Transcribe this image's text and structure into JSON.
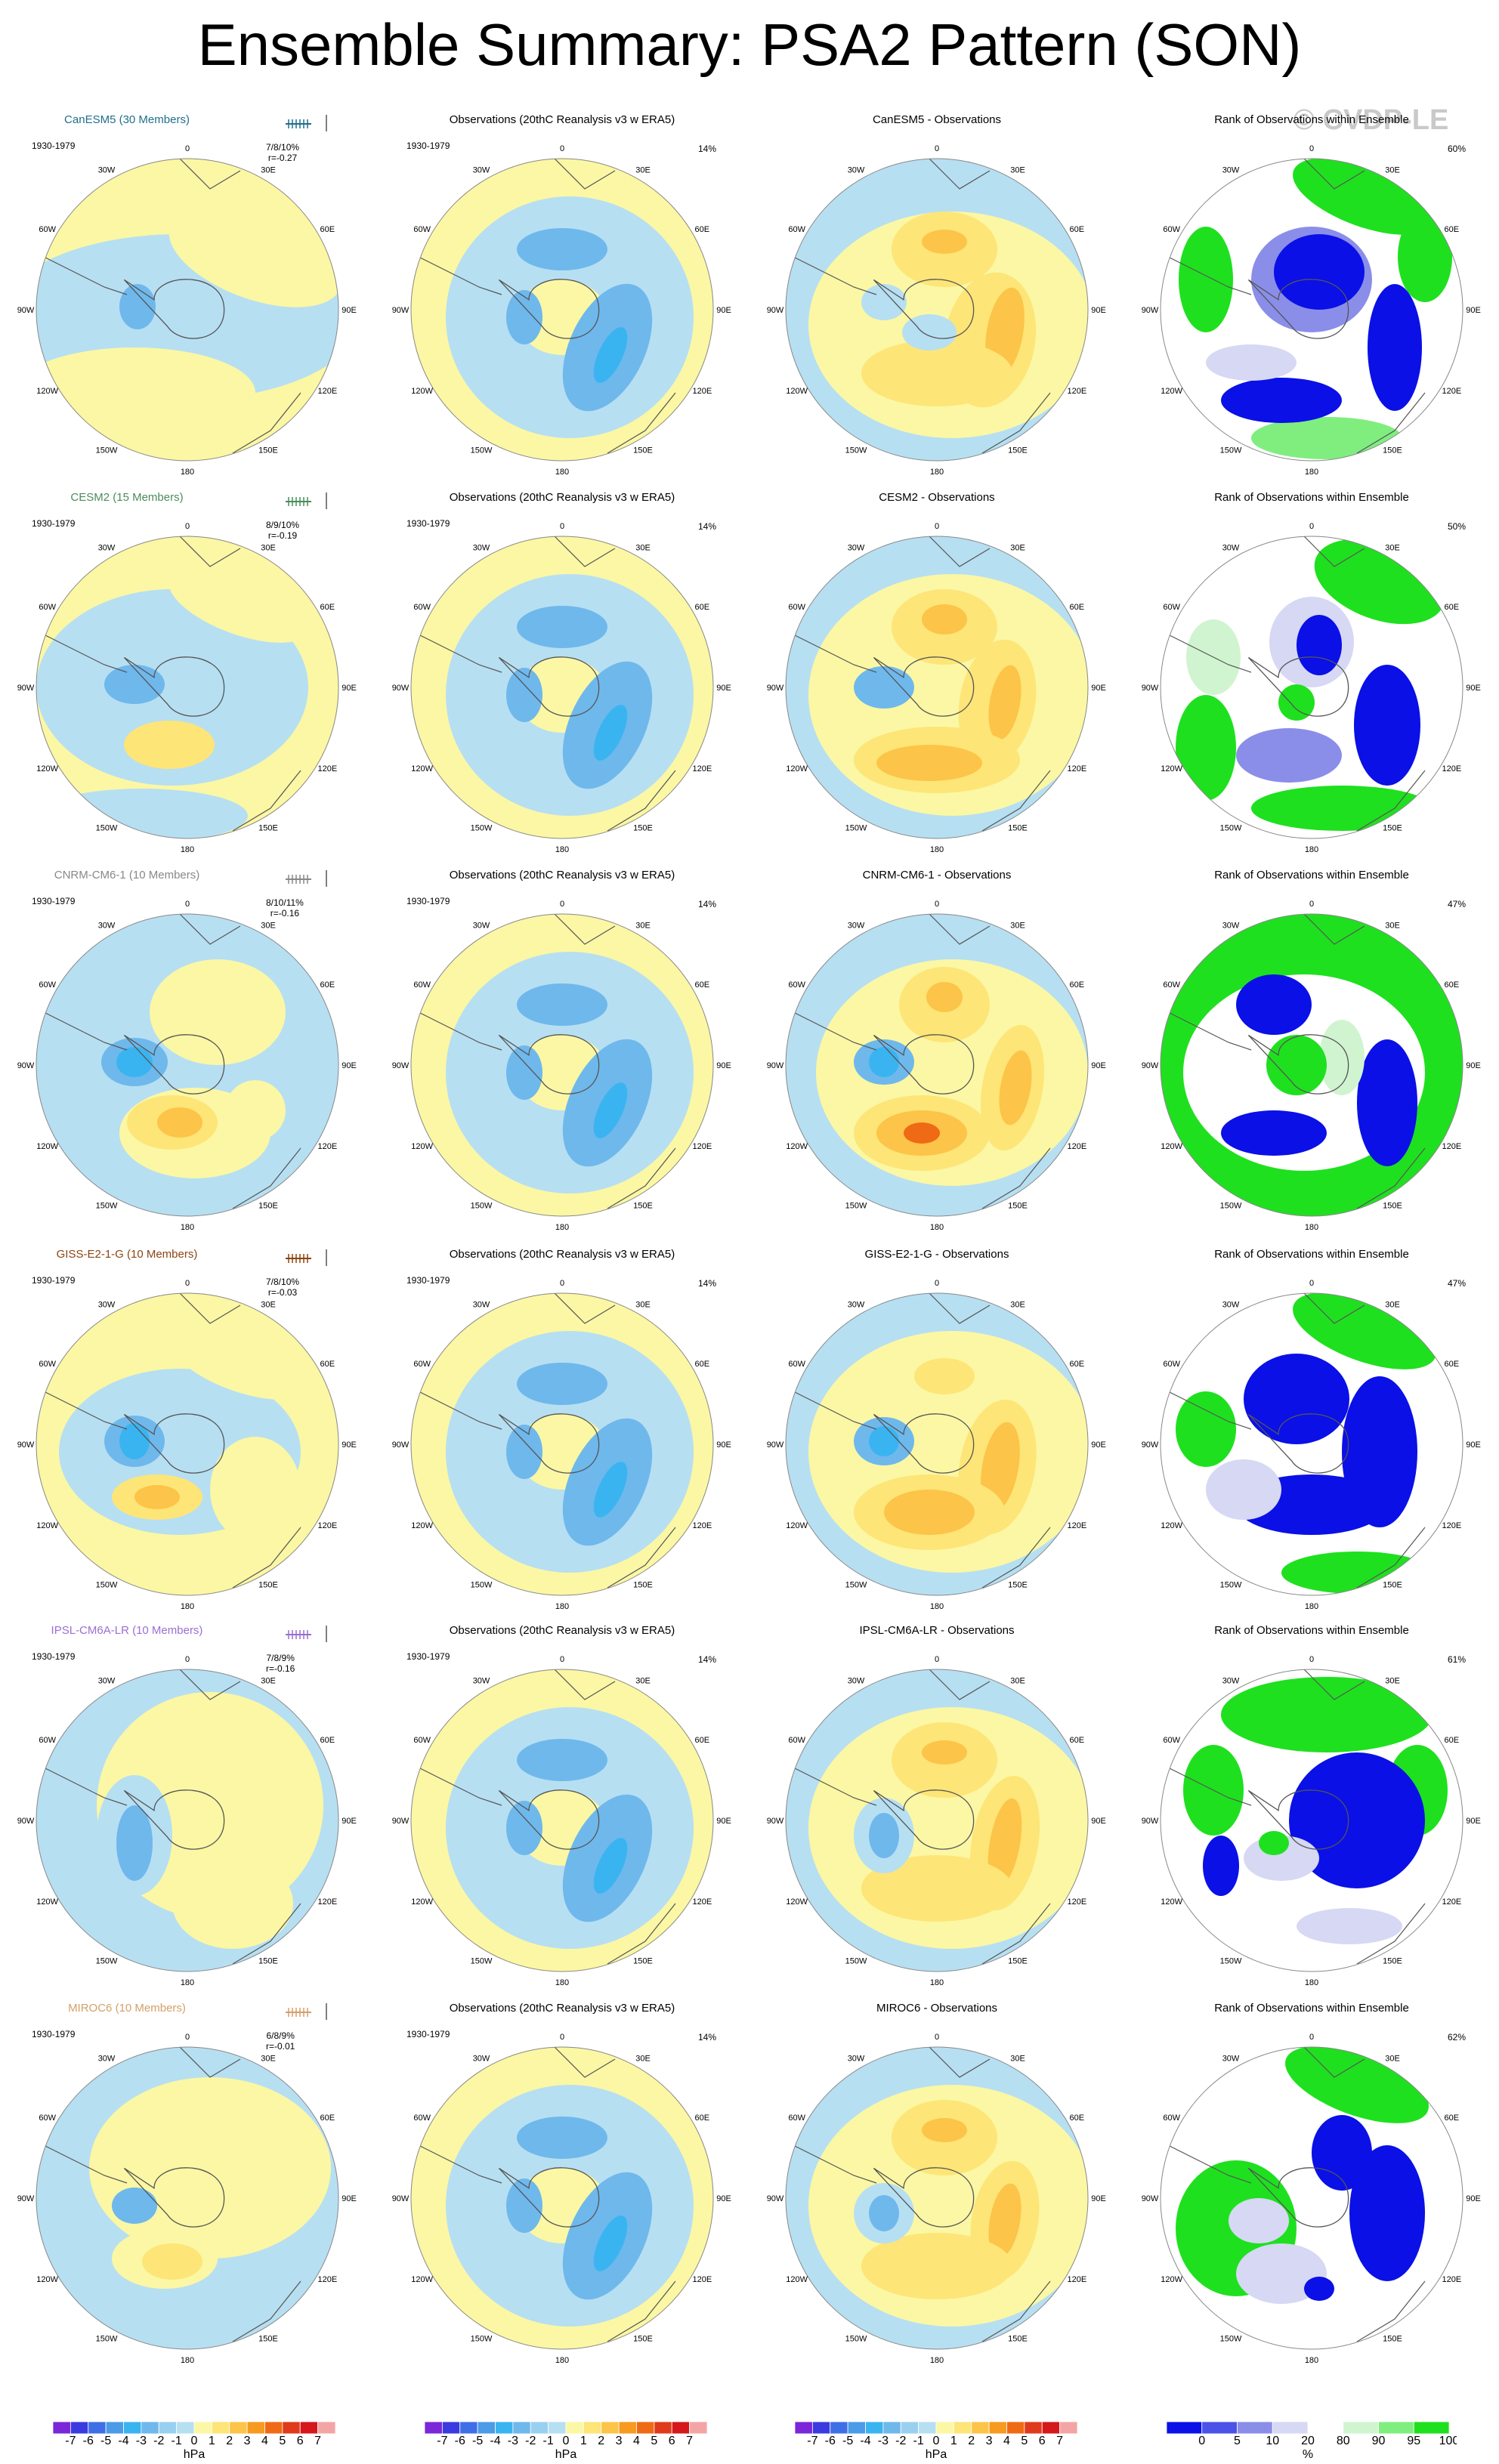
{
  "page": {
    "title": "Ensemble Summary: PSA2 Pattern (SON)",
    "watermark": "© CVDP-LE"
  },
  "common": {
    "obs_title": "Observations (20thC Reanalysis v3 w ERA5)",
    "rank_title": "Rank of Observations within Ensemble",
    "years": "1930-1979",
    "obs_pct": "14%",
    "lon_labels": [
      "0",
      "30E",
      "60E",
      "90E",
      "120E",
      "150E",
      "180",
      "150W",
      "120W",
      "90W",
      "60W",
      "30W"
    ]
  },
  "rows": [
    {
      "model": "CanESM5",
      "title": "CanESM5 (30 Members)",
      "color": "#1f6f8b",
      "stats": "7/8/10%",
      "r": "r=-0.27",
      "diff_title": "CanESM5 - Observations",
      "rank_pct": "60%"
    },
    {
      "model": "CESM2",
      "title": "CESM2 (15 Members)",
      "color": "#4c8c5c",
      "stats": "8/9/10%",
      "r": "r=-0.19",
      "diff_title": "CESM2 - Observations",
      "rank_pct": "50%"
    },
    {
      "model": "CNRM-CM6-1",
      "title": "CNRM-CM6-1 (10 Members)",
      "color": "#888888",
      "stats": "8/10/11%",
      "r": "r=-0.16",
      "diff_title": "CNRM-CM6-1 - Observations",
      "rank_pct": "47%"
    },
    {
      "model": "GISS-E2-1-G",
      "title": "GISS-E2-1-G (10 Members)",
      "color": "#8b4513",
      "stats": "7/8/10%",
      "r": "r=-0.03",
      "diff_title": "GISS-E2-1-G - Observations",
      "rank_pct": "47%"
    },
    {
      "model": "IPSL-CM6A-LR",
      "title": "IPSL-CM6A-LR (10 Members)",
      "color": "#9b6fd0",
      "stats": "7/8/9%",
      "r": "r=-0.16",
      "diff_title": "IPSL-CM6A-LR - Observations",
      "rank_pct": "61%"
    },
    {
      "model": "MIROC6",
      "title": "MIROC6 (10 Members)",
      "color": "#d4a06a",
      "stats": "6/8/9%",
      "r": "r=-0.01",
      "diff_title": "MIROC6 - Observations",
      "rank_pct": "62%"
    }
  ],
  "colorbars": {
    "hpa": {
      "ticks": [
        "-7",
        "-6",
        "-5",
        "-4",
        "-3",
        "-2",
        "-1",
        "0",
        "1",
        "2",
        "3",
        "4",
        "5",
        "6",
        "7"
      ],
      "unit": "hPa",
      "colors": [
        "#7b26d8",
        "#3a3ae0",
        "#3f6fe6",
        "#4b9be8",
        "#3ab4f0",
        "#6fb8ec",
        "#9ad0ef",
        "#b7dff2",
        "#fbf7a4",
        "#fde577",
        "#fcc448",
        "#f79a20",
        "#ef6a14",
        "#e03a1c",
        "#d4181c",
        "#f3a5a5"
      ]
    },
    "pct": {
      "ticks": [
        "0",
        "5",
        "10",
        "20",
        "80",
        "90",
        "95",
        "100"
      ],
      "unit": "%",
      "colors": [
        "#0a10e6",
        "#4a52e8",
        "#8a8ee8",
        "#d6d8f4",
        "#ffffff",
        "#d0f4d0",
        "#7fee7f",
        "#1fe01f"
      ]
    }
  },
  "chart_data": [
    {
      "type": "heatmap",
      "panel": "CanESM5 (30 Members)",
      "unit": "hPa",
      "features": [
        {
          "region": "Bellingshausen/West Antarctic Peninsula",
          "value": -2
        },
        {
          "region": "broad subpolar belt",
          "value": 0.5
        }
      ]
    },
    {
      "type": "heatmap",
      "panel": "Observations (20thC Reanalysis v3 w ERA5)",
      "unit": "hPa",
      "features": [
        {
          "region": "south of New Zealand (150E)",
          "value": -3
        },
        {
          "region": "Weddell/Atlantic sector (60E-30E)",
          "value": -2
        },
        {
          "region": "Bellingshausen (90W)",
          "value": -2
        },
        {
          "region": "midlatitude ring",
          "value": 0.5
        }
      ]
    },
    {
      "type": "heatmap",
      "panel": "CanESM5 - Observations",
      "unit": "hPa",
      "features": [
        {
          "region": "120E sector",
          "value": 3
        },
        {
          "region": "150W sector",
          "value": 2
        },
        {
          "region": "Weddell sector",
          "value": 2
        }
      ]
    },
    {
      "type": "heatmap",
      "panel": "Rank of Observations within Ensemble",
      "unit": "%",
      "categories": [
        "0",
        "5",
        "10",
        "20",
        "80",
        "90",
        "95",
        "100"
      ]
    },
    {
      "type": "heatmap",
      "panel": "CESM2 (15 Members)",
      "unit": "hPa",
      "features": [
        {
          "region": "Drake Passage / 90W",
          "value": -2
        },
        {
          "region": "Amundsen Sea (150W)",
          "value": 2
        }
      ]
    },
    {
      "type": "heatmap",
      "panel": "CNRM-CM6-1 (10 Members)",
      "unit": "hPa",
      "features": [
        {
          "region": "Amundsen/Bellingshausen (90W)",
          "value": -4
        },
        {
          "region": "120W-150W",
          "value": 3
        },
        {
          "region": "30E-60E",
          "value": 1
        }
      ]
    },
    {
      "type": "heatmap",
      "panel": "GISS-E2-1-G (10 Members)",
      "unit": "hPa",
      "features": [
        {
          "region": "90W",
          "value": -3
        },
        {
          "region": "120W",
          "value": 2
        }
      ]
    },
    {
      "type": "heatmap",
      "panel": "IPSL-CM6A-LR (10 Members)",
      "unit": "hPa",
      "features": [
        {
          "region": "90W-120W",
          "value": -2
        },
        {
          "region": "broad east/south",
          "value": 0.5
        }
      ]
    },
    {
      "type": "heatmap",
      "panel": "MIROC6 (10 Members)",
      "unit": "hPa",
      "features": [
        {
          "region": "90W",
          "value": -1
        },
        {
          "region": "150W",
          "value": 1
        }
      ]
    }
  ]
}
